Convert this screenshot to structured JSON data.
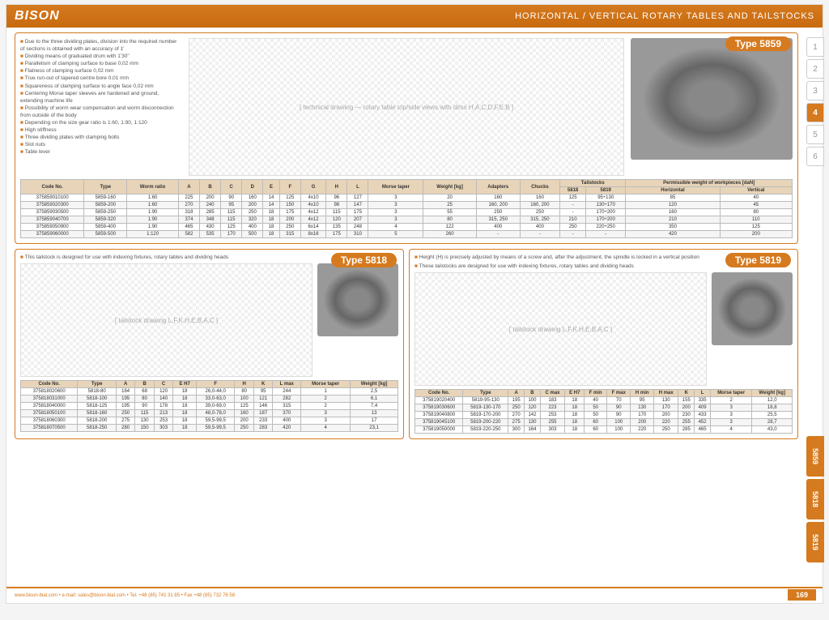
{
  "header": {
    "logo": "BISON",
    "title": "HORIZONTAL / VERTICAL ROTARY TABLES AND TAILSTOCKS"
  },
  "nav_tabs": [
    "1",
    "2",
    "3",
    "4",
    "5",
    "6"
  ],
  "nav_active": 3,
  "vtabs": [
    "5859",
    "5818",
    "5819"
  ],
  "sec5859": {
    "badge": "Type 5859",
    "bullets": [
      "Due to the three dividing plates, division into the required number of sections is obtained with an accuracy of 1'",
      "Dividing means of graduated drum with 1'30\"",
      "Parallelism of clamping surface to base 0,02 mm",
      "Flatness of clamping surface 0,02 mm",
      "True run-out of tapered centre bore 0,01 mm",
      "Squareness of clamping surface to angle face 0,02 mm",
      "Centering Morse taper sleeves are hardened and ground, extending machine life",
      "Possibility of worm wear compensation and worm disconnection from outside of the body",
      "Depending on the size gear ratio is 1:60, 1:90, 1:120",
      "High stiffness",
      "Three dividing plates with clamping bolts",
      "Slot nuts",
      "Table lever"
    ],
    "table": {
      "headers": [
        "Code No.",
        "Type",
        "Worm ratio",
        "A",
        "B",
        "C",
        "D",
        "E",
        "F",
        "G",
        "H",
        "L",
        "Morse taper",
        "Weight [kg]",
        "Adapters",
        "Chucks",
        "5818",
        "5819",
        "Horizontal",
        "Vertical"
      ],
      "group_headers": {
        "tailstocks": "Tailstocks",
        "perm": "Permissible weight of workpieces [daN]"
      },
      "rows": [
        [
          "375859010100",
          "5859-160",
          "1:60",
          "225",
          "200",
          "90",
          "160",
          "14",
          "125",
          "4x10",
          "96",
          "127",
          "3",
          "20",
          "160",
          "160",
          "125",
          "95÷130",
          "85",
          "40"
        ],
        [
          "375859020300",
          "5859-200",
          "1:60",
          "270",
          "240",
          "95",
          "200",
          "14",
          "150",
          "4x10",
          "98",
          "147",
          "3",
          "25",
          "160, 200",
          "160, 200",
          "-",
          "130÷170",
          "120",
          "45"
        ],
        [
          "375859030500",
          "5859-250",
          "1:90",
          "318",
          "285",
          "115",
          "250",
          "18",
          "175",
          "4x12",
          "115",
          "175",
          "3",
          "55",
          "250",
          "250",
          "-",
          "170÷200",
          "160",
          "80"
        ],
        [
          "375859040700",
          "5859-320",
          "1:90",
          "374",
          "348",
          "115",
          "320",
          "18",
          "200",
          "4x12",
          "120",
          "207",
          "3",
          "80",
          "315, 250",
          "315, 250",
          "210",
          "170÷200",
          "210",
          "110"
        ],
        [
          "375859050900",
          "5859-400",
          "1:90",
          "465",
          "430",
          "125",
          "400",
          "18",
          "250",
          "6x14",
          "135",
          "248",
          "4",
          "122",
          "400",
          "400",
          "250",
          "220÷250",
          "350",
          "125"
        ],
        [
          "375859060000",
          "5859-500",
          "1:120",
          "582",
          "535",
          "170",
          "500",
          "18",
          "315",
          "8x16",
          "175",
          "310",
          "5",
          "260",
          "-",
          "-",
          "-",
          "-",
          "420",
          "200"
        ]
      ]
    }
  },
  "sec5818": {
    "badge": "Type 5818",
    "note": "This tailstock is designed for use with indexing fixtures, rotary tables and dividing heads",
    "table": {
      "headers": [
        "Code No.",
        "Type",
        "A",
        "B",
        "C",
        "E H7",
        "F",
        "H",
        "K",
        "L max",
        "Morse taper",
        "Weight [kg]"
      ],
      "rows": [
        [
          "375818020600",
          "5818-80",
          "164",
          "68",
          "120",
          "18",
          "26,0-44,0",
          "80",
          "95",
          "244",
          "1",
          "2,5"
        ],
        [
          "375818031000",
          "5818-100",
          "195",
          "80",
          "140",
          "18",
          "33,0-63,0",
          "100",
          "121",
          "282",
          "2",
          "6,1"
        ],
        [
          "375818040000",
          "5818-125",
          "195",
          "90",
          "178",
          "18",
          "39,0-69,0",
          "125",
          "146",
          "315",
          "2",
          "7,4"
        ],
        [
          "375818050100",
          "5818-160",
          "250",
          "115",
          "213",
          "18",
          "48,0-78,0",
          "160",
          "187",
          "370",
          "3",
          "13"
        ],
        [
          "375818060300",
          "5818-200",
          "275",
          "130",
          "253",
          "18",
          "59,5-99,5",
          "200",
          "233",
          "400",
          "3",
          "17"
        ],
        [
          "375818070500",
          "5818-250",
          "280",
          "150",
          "303",
          "18",
          "59,5-99,5",
          "250",
          "283",
          "420",
          "4",
          "23,1"
        ]
      ]
    }
  },
  "sec5819": {
    "badge": "Type 5819",
    "notes": [
      "Height (H) is precisely adjusted by means of a screw and, after the adjustment, the spindle is locked in a vertical position",
      "These tailstocks are designed for use with indexing fixtures, rotary tables and dividing heads"
    ],
    "table": {
      "headers": [
        "Code No.",
        "Type",
        "A",
        "B",
        "C max",
        "E H7",
        "F min",
        "F max",
        "H min",
        "H max",
        "K",
        "L",
        "Morse taper",
        "Weight [kg]"
      ],
      "rows": [
        [
          "375819020400",
          "5819-95-130",
          "195",
          "100",
          "183",
          "18",
          "40",
          "70",
          "95",
          "130",
          "155",
          "335",
          "2",
          "12,0"
        ],
        [
          "375819030600",
          "5819-130-170",
          "250",
          "120",
          "223",
          "18",
          "50",
          "90",
          "130",
          "170",
          "200",
          "409",
          "3",
          "18,8"
        ],
        [
          "375819040800",
          "5819-170-200",
          "270",
          "142",
          "253",
          "18",
          "50",
          "90",
          "170",
          "200",
          "230",
          "433",
          "3",
          "25,5"
        ],
        [
          "375819045100",
          "5819-200-220",
          "275",
          "130",
          "255",
          "18",
          "60",
          "100",
          "200",
          "220",
          "255",
          "452",
          "3",
          "28,7"
        ],
        [
          "375819050000",
          "5819-220-250",
          "300",
          "164",
          "303",
          "18",
          "60",
          "100",
          "220",
          "250",
          "285",
          "465",
          "4",
          "43,0"
        ]
      ]
    }
  },
  "footer": {
    "text": "www.bison-bial.com • e-mail: sales@bison-bial.com • Tel. +48 (85) 741 31 85 • Fax +48 (85) 732 76 58",
    "page": "169"
  },
  "colors": {
    "accent": "#d57a1e",
    "header_bg": "#e8d4b8"
  }
}
